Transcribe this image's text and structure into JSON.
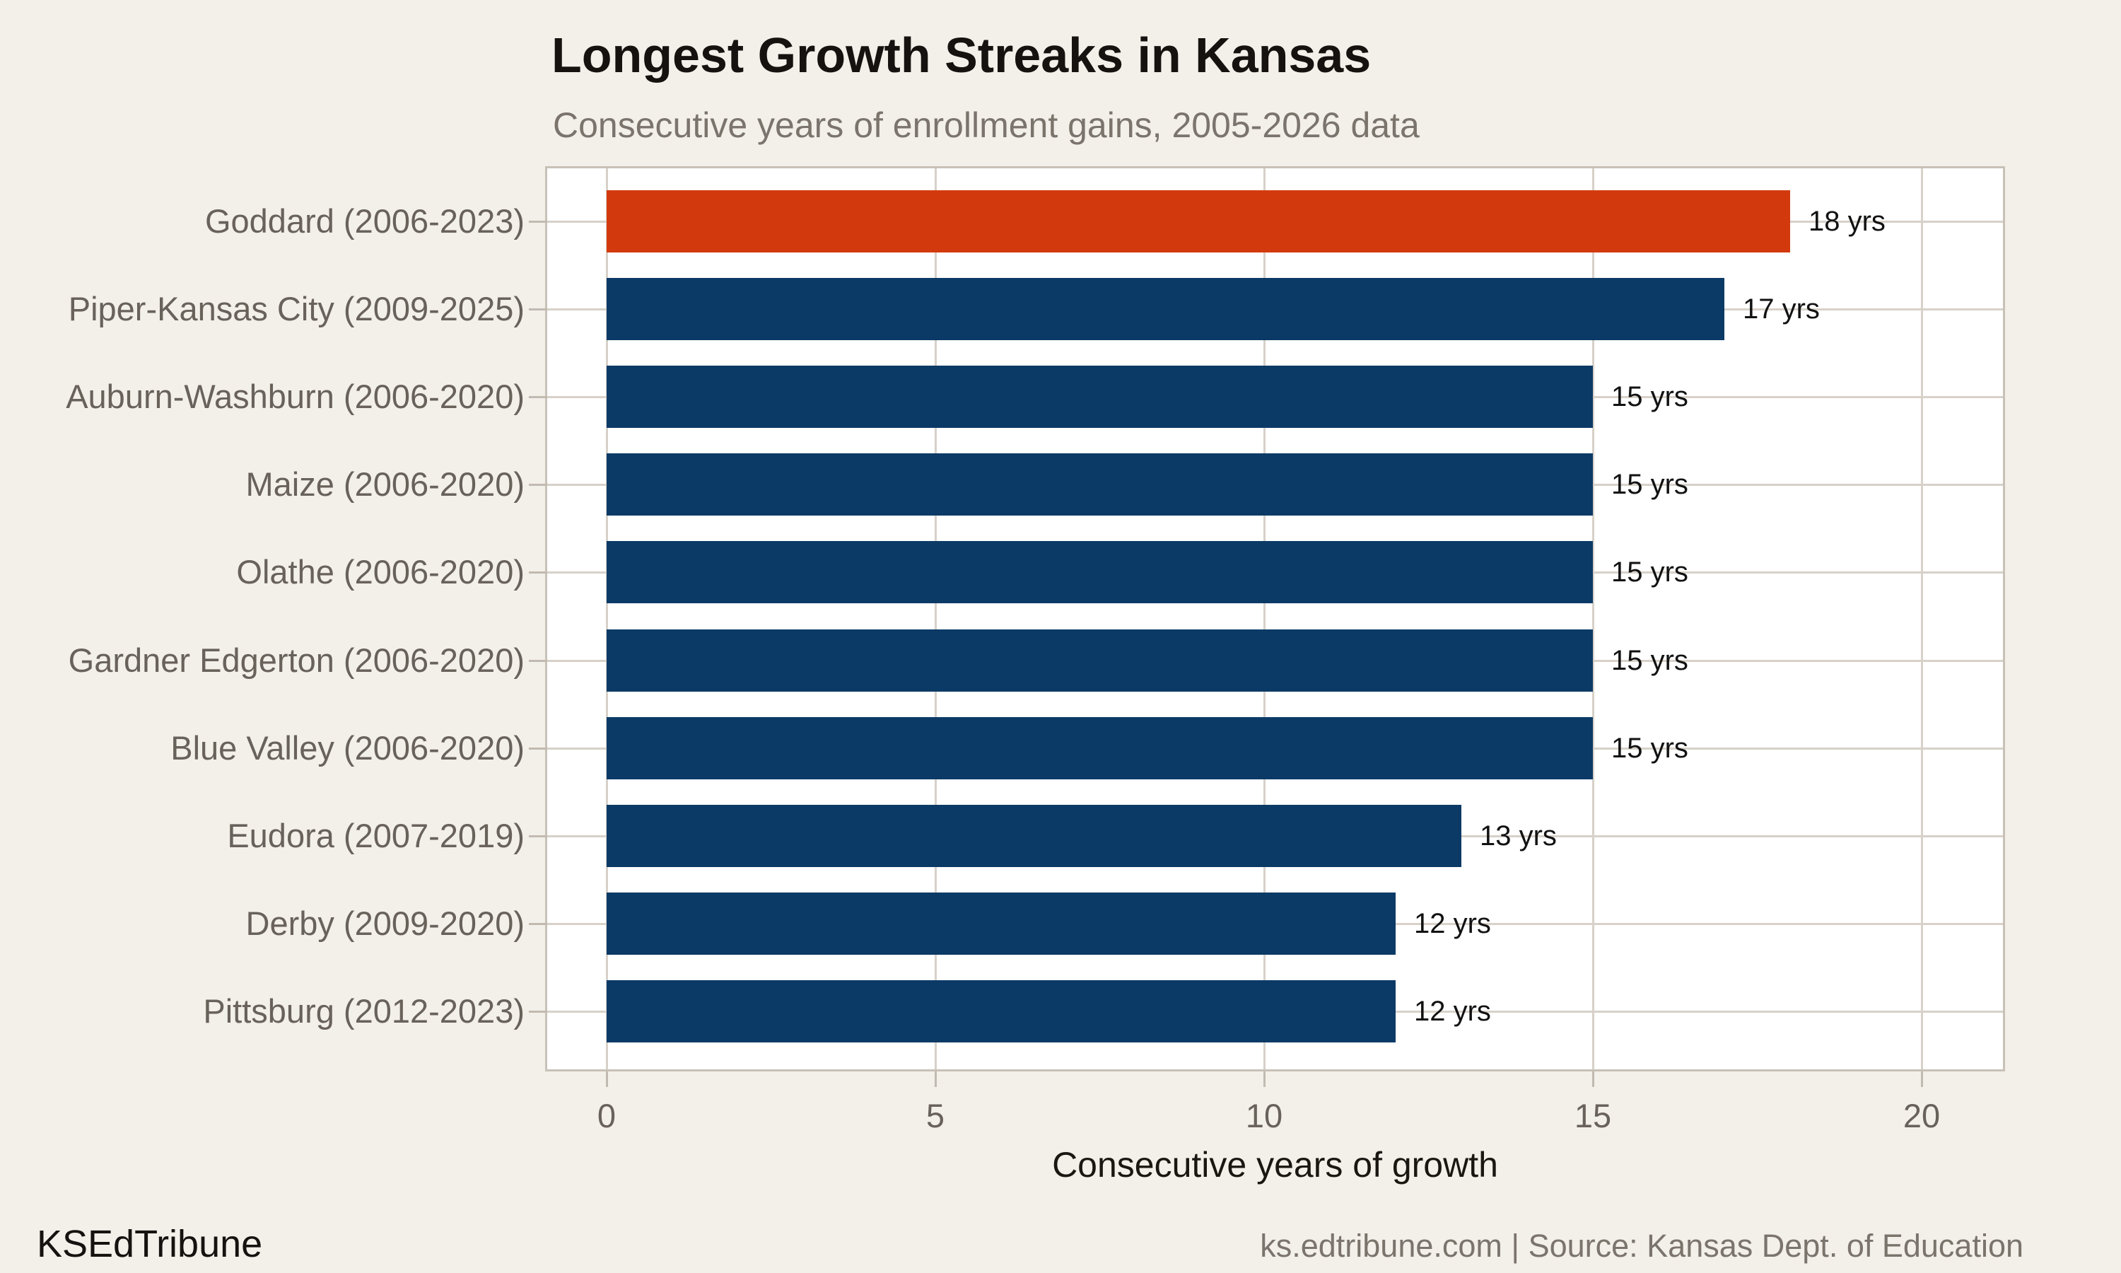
{
  "header": {
    "title": "Longest Growth Streaks in Kansas",
    "subtitle": "Consecutive years of enrollment gains, 2005-2026 data"
  },
  "footer": {
    "brand": "KSEdTribune",
    "source": "ks.edtribune.com | Source: Kansas Dept. of Education"
  },
  "chart_data": {
    "type": "bar",
    "orientation": "horizontal",
    "title": "Longest Growth Streaks in Kansas",
    "subtitle": "Consecutive years of enrollment gains, 2005-2026 data",
    "xlabel": "Consecutive years of growth",
    "ylabel": "",
    "xlim": [
      0,
      21.2
    ],
    "xticks": [
      0,
      5,
      10,
      15,
      20
    ],
    "xtick_labels": [
      "0",
      "5",
      "10",
      "15",
      "20"
    ],
    "grid": true,
    "legend": "none",
    "categories": [
      "Goddard (2006-2023)",
      "Piper-Kansas City (2009-2025)",
      "Auburn-Washburn (2006-2020)",
      "Maize (2006-2020)",
      "Olathe (2006-2020)",
      "Gardner Edgerton (2006-2020)",
      "Blue Valley (2006-2020)",
      "Eudora (2007-2019)",
      "Derby (2009-2020)",
      "Pittsburg (2012-2023)"
    ],
    "values": [
      18,
      17,
      15,
      15,
      15,
      15,
      15,
      13,
      12,
      12
    ],
    "value_labels": [
      "18 yrs",
      "17 yrs",
      "15 yrs",
      "15 yrs",
      "15 yrs",
      "15 yrs",
      "15 yrs",
      "13 yrs",
      "12 yrs",
      "12 yrs"
    ],
    "highlight_index": 0,
    "colors": {
      "bar": "#0b3a66",
      "highlight": "#d23a0e",
      "background": "#f3efe9",
      "plot_background": "#ffffff",
      "gridline": "#d7d1c9",
      "panel_border": "#c8c1b8",
      "tick": "#c1bab1",
      "axis_text": "#68625b",
      "value_text": "#121212",
      "title_text": "#15120f",
      "subtitle_text": "#7a746c"
    }
  }
}
